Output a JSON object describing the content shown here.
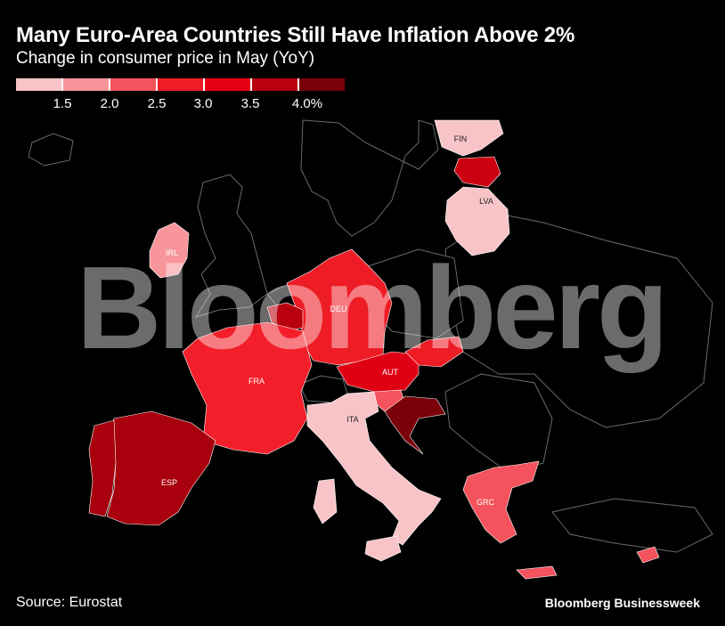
{
  "title": "Many Euro-Area Countries Still Have Inflation Above 2%",
  "subtitle": "Change in consumer price in May (YoY)",
  "legend": {
    "colors": [
      "#f9c4c8",
      "#f7959b",
      "#f4525c",
      "#ee1c25",
      "#e60012",
      "#b8000e",
      "#7a0009"
    ],
    "labels": [
      "1.5",
      "2.0",
      "2.5",
      "3.0",
      "3.5",
      "4.0%"
    ]
  },
  "countries": [
    {
      "code": "FIN",
      "label": "FIN",
      "color": "#f9c4c8"
    },
    {
      "code": "EST",
      "label": "",
      "color": "#cc0010"
    },
    {
      "code": "LVA",
      "label": "LVA",
      "color": "#f9c4c8"
    },
    {
      "code": "IRL",
      "label": "IRL",
      "color": "#f7959b"
    },
    {
      "code": "DEU",
      "label": "DEU",
      "color": "#ee1c25"
    },
    {
      "code": "BEL",
      "label": "",
      "color": "#b8000e"
    },
    {
      "code": "FRA",
      "label": "FRA",
      "color": "#f21f2a"
    },
    {
      "code": "AUT",
      "label": "AUT",
      "color": "#e00014"
    },
    {
      "code": "SVK",
      "label": "",
      "color": "#ee1c25"
    },
    {
      "code": "SVN",
      "label": "",
      "color": "#f4525c"
    },
    {
      "code": "HRV",
      "label": "",
      "color": "#7a0009"
    },
    {
      "code": "ITA",
      "label": "ITA",
      "color": "#f9c4c8"
    },
    {
      "code": "ESP",
      "label": "ESP",
      "color": "#a8000c"
    },
    {
      "code": "PRT",
      "label": "",
      "color": "#a8000c"
    },
    {
      "code": "GRC",
      "label": "GRC",
      "color": "#f4525c"
    },
    {
      "code": "CYP",
      "label": "",
      "color": "#f4525c"
    }
  ],
  "watermark": "Bloomberg",
  "source": "Source: Eurostat",
  "brand": "Bloomberg Businessweek"
}
